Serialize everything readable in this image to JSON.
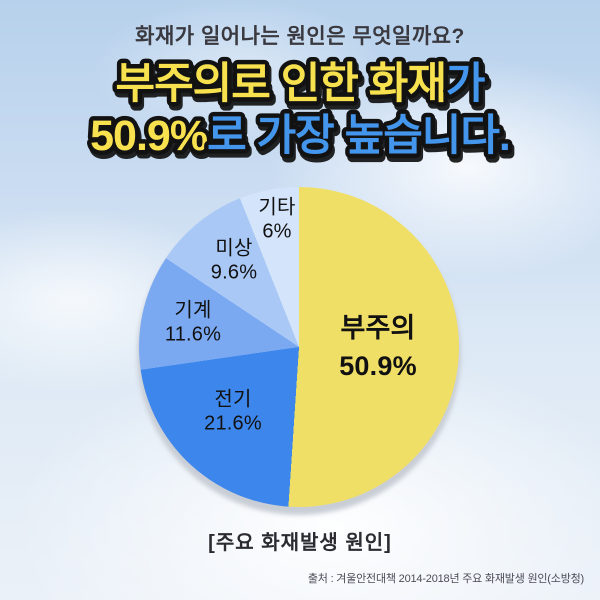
{
  "header": {
    "subtitle": "화재가 일어나는 원인은 무엇일까요?",
    "line1_highlight": "부주의로 인한 화재",
    "line1_rest": "가",
    "line2_highlight": "50.9%",
    "line2_rest": "로 가장 높습니다."
  },
  "theme": {
    "title_yellow": "#F7E14E",
    "title_blue": "#4496EC",
    "outline_black": "#121212"
  },
  "chart_data": {
    "type": "pie",
    "title": "[주요 화재발생 원인]",
    "categories": [
      "부주의",
      "전기",
      "기계",
      "미상",
      "기타"
    ],
    "values": [
      50.9,
      21.6,
      11.6,
      9.6,
      6
    ],
    "display_values": [
      "50.9%",
      "21.6%",
      "11.6%",
      "9.6%",
      "6%"
    ],
    "colors": [
      "#F0DF66",
      "#3D87EC",
      "#7AA8F1",
      "#A9C8F6",
      "#D4E4FB"
    ],
    "start_angle_deg": 0,
    "direction": "clockwise",
    "legend_position": "labels-on-slices",
    "label_text_color": "#111111"
  },
  "footer": {
    "source": "출처 : 겨울안전대책 2014-2018년 주요 화재발생 원인(소방청)"
  }
}
